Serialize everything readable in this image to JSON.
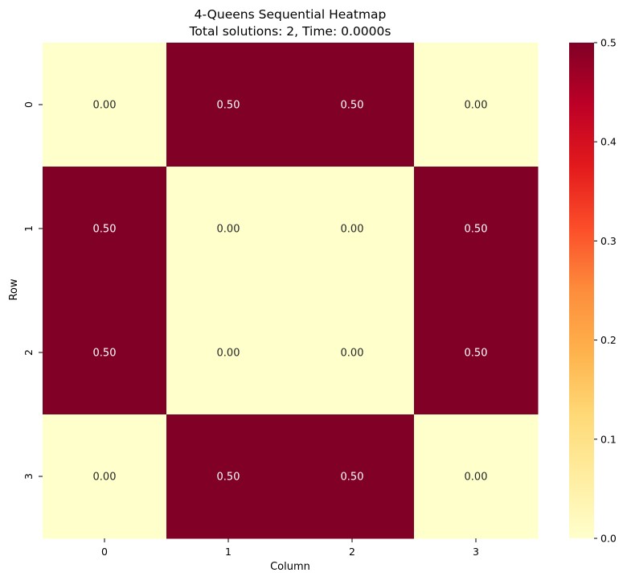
{
  "chart_data": {
    "type": "heatmap",
    "title_line1": "4-Queens Sequential Heatmap",
    "title_line2": "Total solutions: 2, Time: 0.0000s",
    "xlabel": "Column",
    "ylabel": "Row",
    "x_categories": [
      "0",
      "1",
      "2",
      "3"
    ],
    "y_categories": [
      "0",
      "1",
      "2",
      "3"
    ],
    "values": [
      [
        0.0,
        0.5,
        0.5,
        0.0
      ],
      [
        0.5,
        0.0,
        0.0,
        0.5
      ],
      [
        0.5,
        0.0,
        0.0,
        0.5
      ],
      [
        0.0,
        0.5,
        0.5,
        0.0
      ]
    ],
    "annotation_format": "0.00",
    "colormap": "YlOrRd",
    "colorbar": {
      "vmin": 0.0,
      "vmax": 0.5,
      "ticks": [
        "0.0",
        "0.1",
        "0.2",
        "0.3",
        "0.4",
        "0.5"
      ]
    },
    "colors": {
      "low": "#ffffcc",
      "high": "#800026",
      "annotation_on_dark": "#ffffff",
      "annotation_on_light": "#262626"
    }
  }
}
